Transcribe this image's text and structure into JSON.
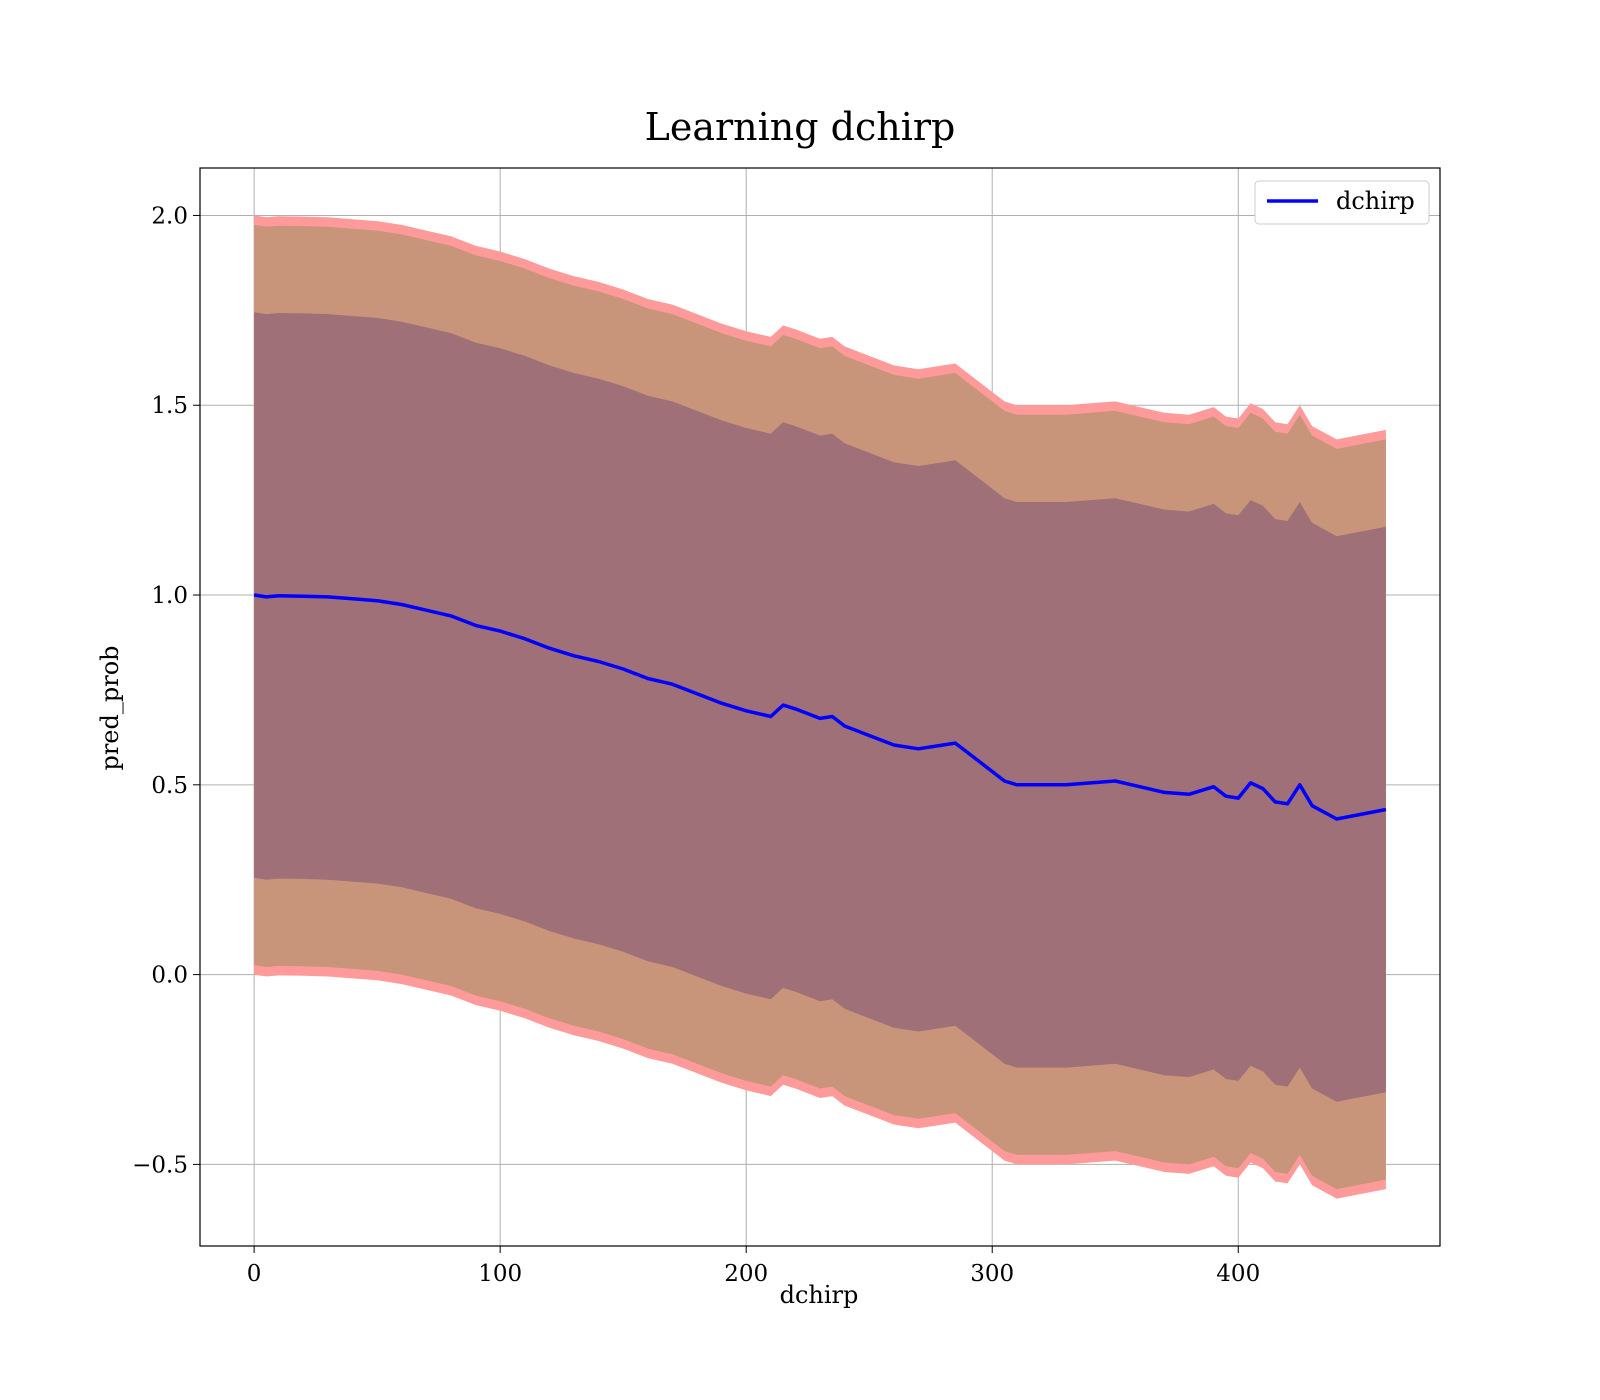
{
  "chart_data": {
    "type": "area",
    "title": "Learning dchirp",
    "xlabel": "dchirp",
    "ylabel": "pred_prob",
    "xlim": [
      -22,
      482
    ],
    "ylim": [
      -0.715,
      2.125
    ],
    "xticks": [
      0,
      100,
      200,
      300,
      400
    ],
    "yticks": [
      -0.5,
      0.0,
      0.5,
      1.0,
      1.5,
      2.0
    ],
    "xtick_labels": [
      "0",
      "100",
      "200",
      "300",
      "400"
    ],
    "ytick_labels": [
      "−0.5",
      "0.0",
      "0.5",
      "1.0",
      "1.5",
      "2.0"
    ],
    "grid": true,
    "legend": {
      "position": "top-right",
      "entries": [
        "dchirp"
      ]
    },
    "colors": {
      "line": "#0000ff",
      "band_outer": "#ff9a9a",
      "band_middle": "#c8947a",
      "band_inner": "#a07078"
    },
    "x": [
      0,
      5,
      10,
      20,
      30,
      40,
      50,
      60,
      70,
      80,
      90,
      100,
      110,
      120,
      130,
      140,
      150,
      160,
      170,
      180,
      190,
      200,
      210,
      215,
      220,
      230,
      235,
      240,
      250,
      260,
      270,
      280,
      285,
      290,
      300,
      305,
      310,
      320,
      330,
      340,
      350,
      360,
      370,
      380,
      390,
      395,
      400,
      405,
      410,
      415,
      420,
      425,
      430,
      440,
      460
    ],
    "series": [
      {
        "name": "dchirp",
        "values": [
          1.0,
          0.995,
          0.998,
          0.997,
          0.995,
          0.99,
          0.985,
          0.975,
          0.96,
          0.945,
          0.92,
          0.905,
          0.885,
          0.86,
          0.84,
          0.825,
          0.805,
          0.78,
          0.765,
          0.74,
          0.715,
          0.695,
          0.68,
          0.71,
          0.7,
          0.675,
          0.68,
          0.655,
          0.63,
          0.605,
          0.595,
          0.605,
          0.61,
          0.585,
          0.535,
          0.51,
          0.5,
          0.5,
          0.5,
          0.505,
          0.51,
          0.495,
          0.48,
          0.475,
          0.495,
          0.47,
          0.465,
          0.505,
          0.49,
          0.455,
          0.45,
          0.5,
          0.445,
          0.41,
          0.435
        ]
      }
    ],
    "bands": [
      {
        "level": "outer",
        "upper_offset": 1.0,
        "lower_offset": 1.0
      },
      {
        "level": "middle",
        "upper_offset": 0.975,
        "lower_offset": 0.975
      },
      {
        "level": "inner",
        "upper_offset": 0.745,
        "lower_offset": 0.745
      }
    ]
  }
}
